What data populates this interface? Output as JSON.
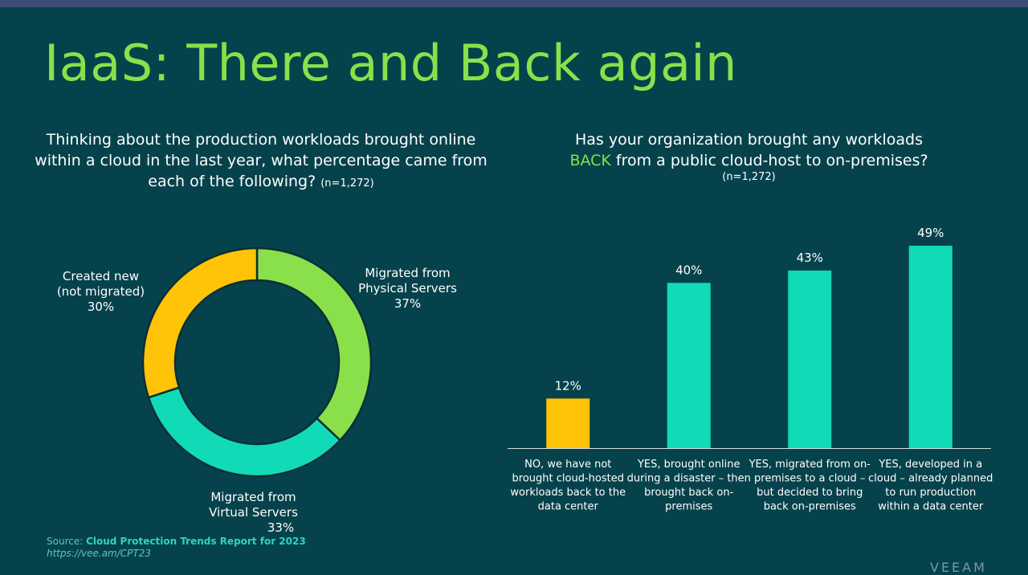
{
  "title": "IaaS: There and Back again",
  "left_question": {
    "text": "Thinking about the production workloads brought online within a cloud in the last year, what percentage came from each of the following?",
    "n": "(n=1,272)"
  },
  "right_question": {
    "line1": "Has your organization brought any workloads",
    "accent": "BACK",
    "line2_rest": " from a public cloud-host to on-premises?",
    "n": "(n=1,272)"
  },
  "colors": {
    "green": "#8ae04a",
    "teal": "#11dab6",
    "yellow": "#ffc407",
    "bg": "#06424b"
  },
  "chart_data": [
    {
      "type": "pie",
      "title": "Thinking about the production workloads brought online within a cloud in the last year, what percentage came from each of the following?",
      "categories": [
        "Migrated from Physical Servers",
        "Migrated from Virtual Servers",
        "Created new (not migrated)"
      ],
      "values": [
        37,
        33,
        30
      ],
      "labels": [
        {
          "line1": "Migrated from",
          "line2": "Physical Servers",
          "pct": "37%"
        },
        {
          "line1": "Migrated from",
          "line2": "Virtual Servers",
          "pct": "33%"
        },
        {
          "line1": "Created new",
          "line2": "(not migrated)",
          "pct": "30%"
        }
      ],
      "series_colors": [
        "#8ae04a",
        "#11dab6",
        "#ffc407"
      ]
    },
    {
      "type": "bar",
      "title": "Has your organization brought any workloads BACK from a public cloud-host to on-premises?",
      "categories": [
        "NO, we have not brought cloud-hosted workloads back to the data center",
        "YES, brought online during a disaster – then brought back on-premises",
        "YES, migrated from on-premises to a cloud – but decided to bring back on-premises",
        "YES, developed in a cloud – already planned to run production within a data center"
      ],
      "category_lines": [
        [
          "NO, we have not",
          "brought cloud-hosted",
          "workloads back to the",
          "data center"
        ],
        [
          "YES, brought online",
          "during a disaster – then",
          "brought back on-",
          "premises"
        ],
        [
          "YES, migrated from on-",
          "premises to a cloud –",
          "but decided to bring",
          "back on-premises"
        ],
        [
          "YES, developed in a",
          "cloud – already planned",
          "to run production",
          "within a data center"
        ]
      ],
      "values": [
        12,
        40,
        43,
        49
      ],
      "value_labels": [
        "12%",
        "40%",
        "43%",
        "49%"
      ],
      "bar_colors": [
        "#ffc407",
        "#11dab6",
        "#11dab6",
        "#11dab6"
      ],
      "ylim": [
        0,
        49
      ]
    }
  ],
  "source": {
    "prefix": "Source: ",
    "name": "Cloud Protection Trends Report for 2023",
    "url": "https://vee.am/CPT23"
  },
  "logo": "VEEAM"
}
